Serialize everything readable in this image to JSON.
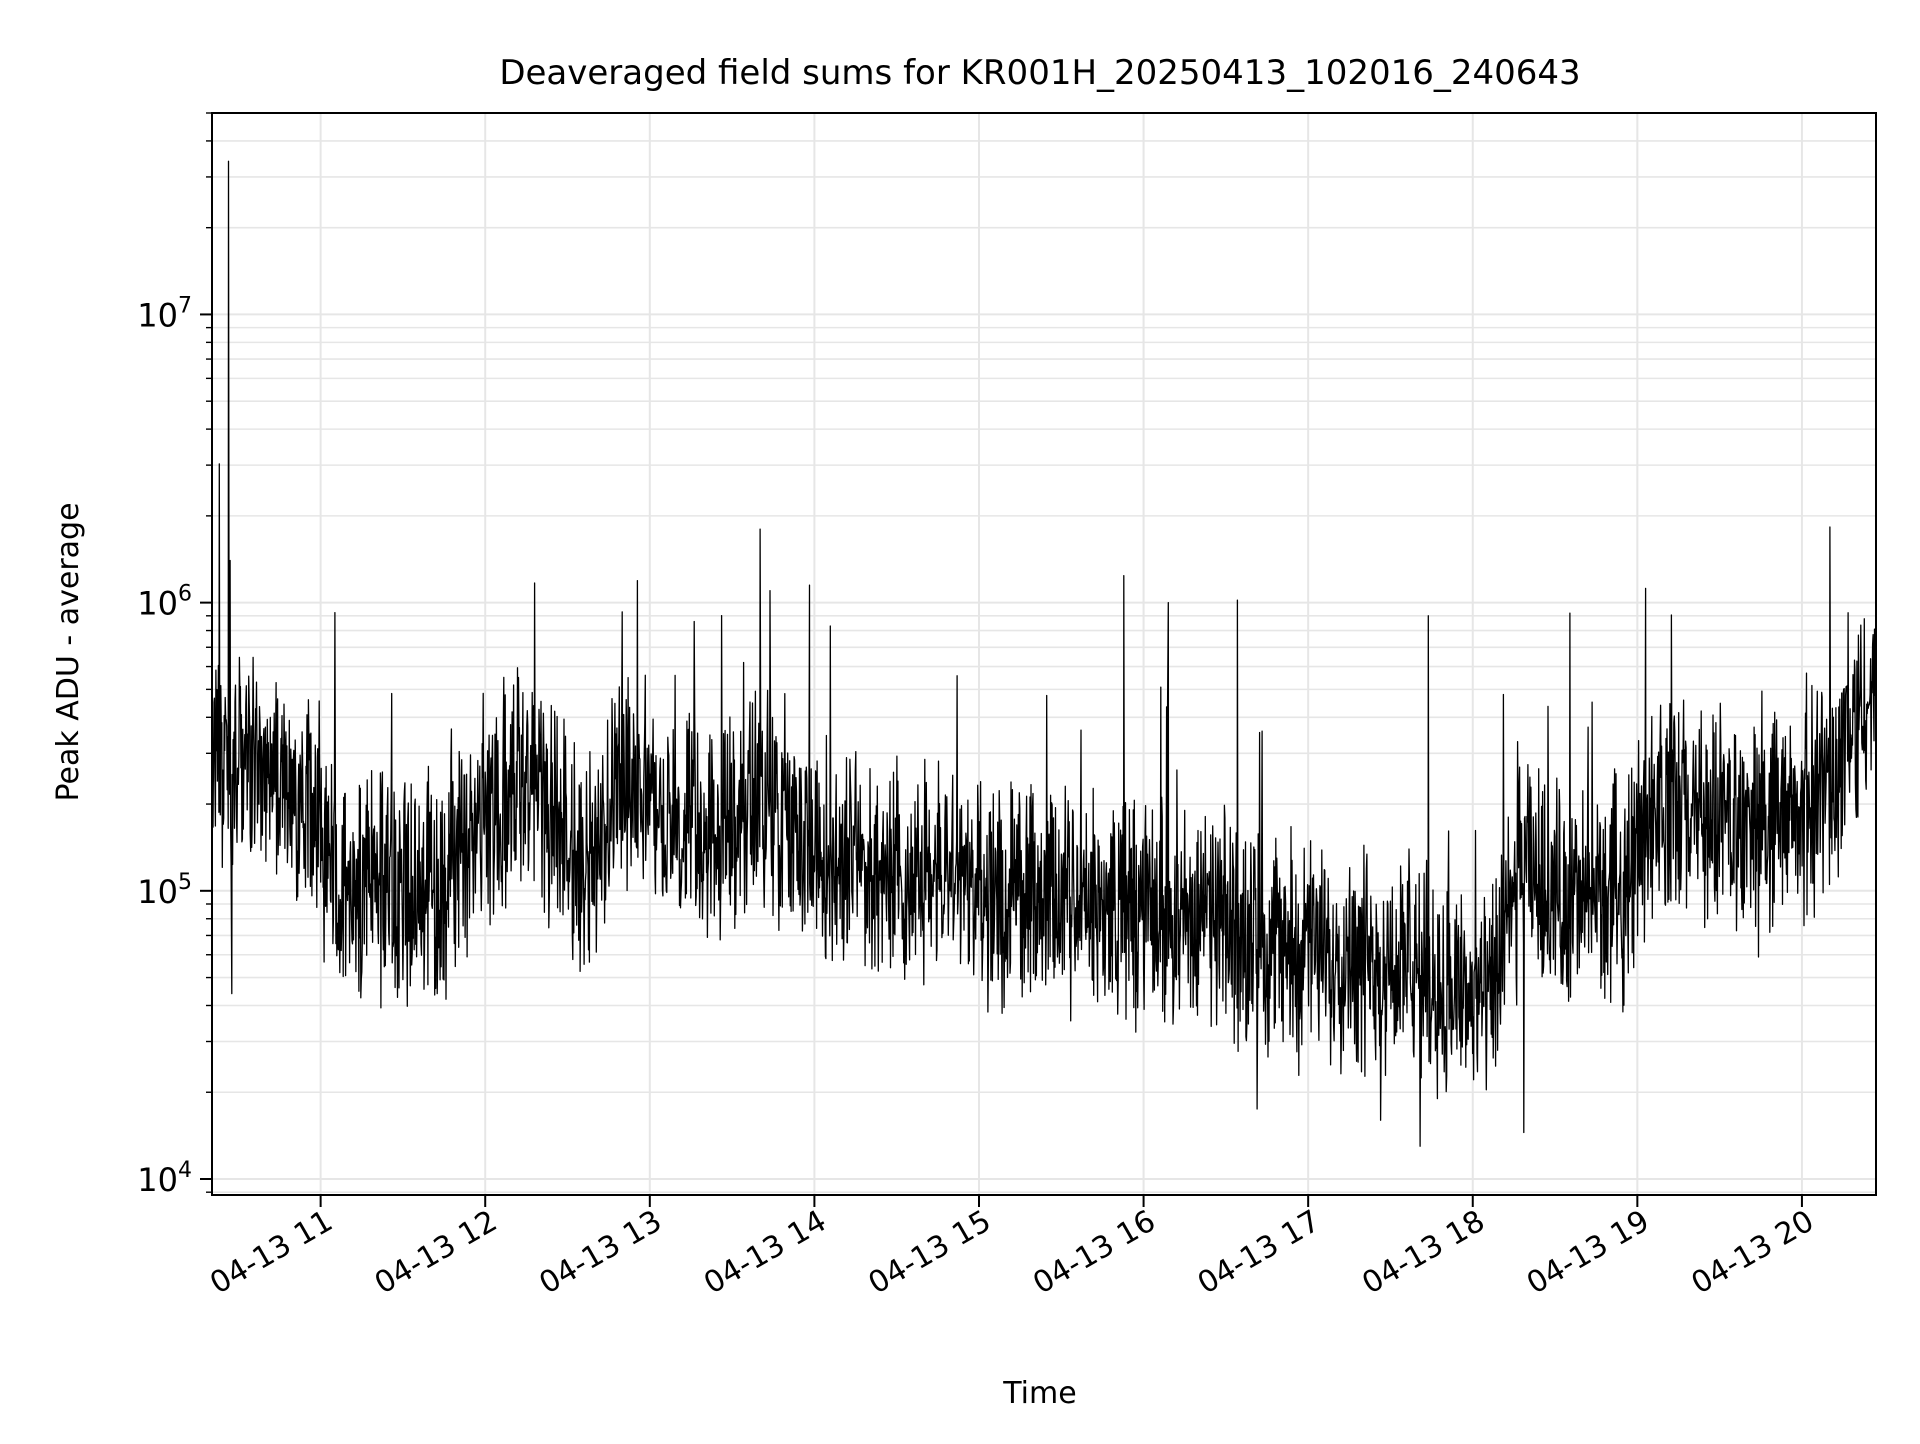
{
  "chart_data": {
    "type": "line",
    "title": "Deaveraged field sums for KR001H_20250413_102016_240643",
    "xlabel": "Time",
    "ylabel": "Peak ADU - average",
    "x_tick_labels": [
      "04-13 11",
      "04-13 12",
      "04-13 13",
      "04-13 14",
      "04-13 15",
      "04-13 16",
      "04-13 17",
      "04-13 18",
      "04-13 19",
      "04-13 20"
    ],
    "x_tick_hours": [
      11,
      12,
      13,
      14,
      15,
      16,
      17,
      18,
      19,
      20
    ],
    "xlim_hours": [
      10.34,
      20.45
    ],
    "ylim": [
      8800,
      50000000
    ],
    "yscale": "log",
    "y_tick_labels": [
      {
        "base": "10",
        "exp": "4",
        "value": 10000
      },
      {
        "base": "10",
        "exp": "5",
        "value": 100000
      },
      {
        "base": "10",
        "exp": "6",
        "value": 1000000
      },
      {
        "base": "10",
        "exp": "7",
        "value": 10000000
      }
    ],
    "grid": true,
    "legend": "none",
    "colors": {
      "line": "#000000",
      "grid": "#e6e6e6",
      "axes": "#000000"
    },
    "envelope": {
      "x_hours": [
        10.34,
        10.6,
        10.9,
        11.1,
        11.4,
        11.7,
        12.0,
        12.3,
        12.6,
        12.9,
        13.1,
        13.4,
        13.7,
        14.0,
        14.4,
        14.8,
        15.2,
        15.6,
        16.0,
        16.4,
        16.8,
        17.2,
        17.6,
        17.9,
        18.1,
        18.3,
        18.6,
        18.9,
        19.1,
        19.4,
        19.7,
        20.0,
        20.2,
        20.45
      ],
      "y_center": [
        300000,
        300000,
        230000,
        110000,
        100000,
        90000,
        180000,
        250000,
        110000,
        300000,
        170000,
        150000,
        220000,
        140000,
        120000,
        105000,
        95000,
        90000,
        85000,
        80000,
        65000,
        60000,
        55000,
        45000,
        40000,
        120000,
        90000,
        100000,
        200000,
        180000,
        160000,
        180000,
        260000,
        500000
      ]
    },
    "spikes": [
      {
        "x": 10.44,
        "y": 34000000
      },
      {
        "x": 10.45,
        "y": 1400000
      },
      {
        "x": 10.46,
        "y": 44000
      },
      {
        "x": 12.3,
        "y": 1170000
      },
      {
        "x": 13.27,
        "y": 860000
      },
      {
        "x": 13.57,
        "y": 620000
      },
      {
        "x": 13.67,
        "y": 1800000
      },
      {
        "x": 13.73,
        "y": 1100000
      },
      {
        "x": 13.97,
        "y": 1150000
      },
      {
        "x": 15.88,
        "y": 1240000
      },
      {
        "x": 16.15,
        "y": 1000000
      },
      {
        "x": 16.57,
        "y": 1020000
      },
      {
        "x": 17.73,
        "y": 900000
      },
      {
        "x": 18.59,
        "y": 920000
      },
      {
        "x": 19.05,
        "y": 1120000
      },
      {
        "x": 20.17,
        "y": 1830000
      },
      {
        "x": 17.68,
        "y": 13000
      },
      {
        "x": 18.31,
        "y": 14500
      },
      {
        "x": 17.44,
        "y": 16000
      },
      {
        "x": 16.69,
        "y": 17500
      }
    ]
  }
}
